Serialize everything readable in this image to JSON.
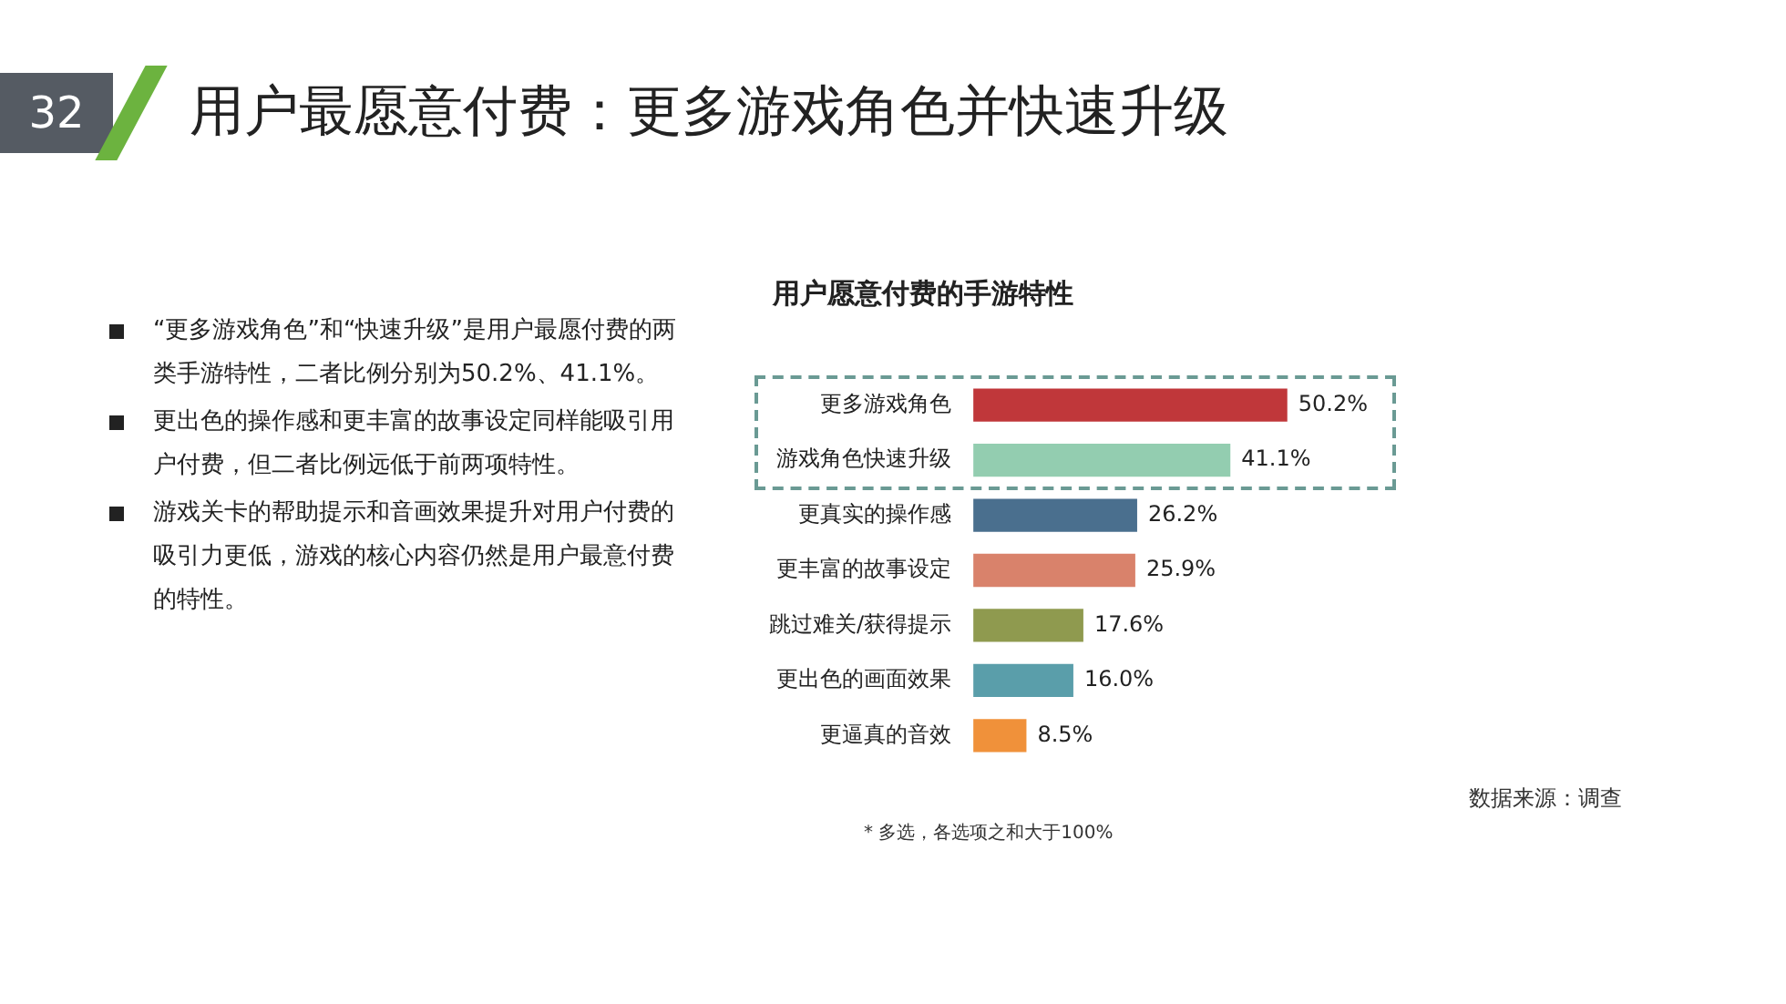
{
  "chart_data": {
    "type": "bar",
    "orientation": "horizontal",
    "title": "用户最愿意付费：更多游戏角色并快速升级",
    "subtitle": "用户愿意付费的手游特性",
    "categories": [
      "更多游戏角色",
      "游戏角色快速升级",
      "更真实的操作感",
      "更丰富的故事设定",
      "跳过难关/获得提示",
      "更出色的画面效果",
      "更逼真的音效"
    ],
    "values": [
      50.2,
      41.1,
      26.2,
      25.9,
      17.6,
      16.0,
      8.5
    ],
    "colors": [
      "#c0373a",
      "#93cdb0",
      "#4a6f8e",
      "#d9826b",
      "#8f9a4f",
      "#5a9eaa",
      "#f0913a"
    ],
    "value_labels": [
      "50.2%",
      "41.1%",
      "26.2%",
      "25.9%",
      "17.6%",
      "16.0%",
      "8.5%"
    ],
    "grid": false,
    "legend": false,
    "annotations": [
      "32",
      "“更多游戏角色”和“快速升级”是用户最愿付费的两类手游特性，二者比例分别为50.2%、41.1%。",
      "更出色的操作感和更丰富的故事设定同样能吸引用户付费，但二者比例远低于前两项特性。",
      "游戏关卡的帮助提示和音画效果提升对用户付费的吸引力更低，游戏的核心内容仍然是用户最意付费的特性。",
      "*   多选，各选项之和大于100%",
      "数据来源：调查"
    ]
  }
}
